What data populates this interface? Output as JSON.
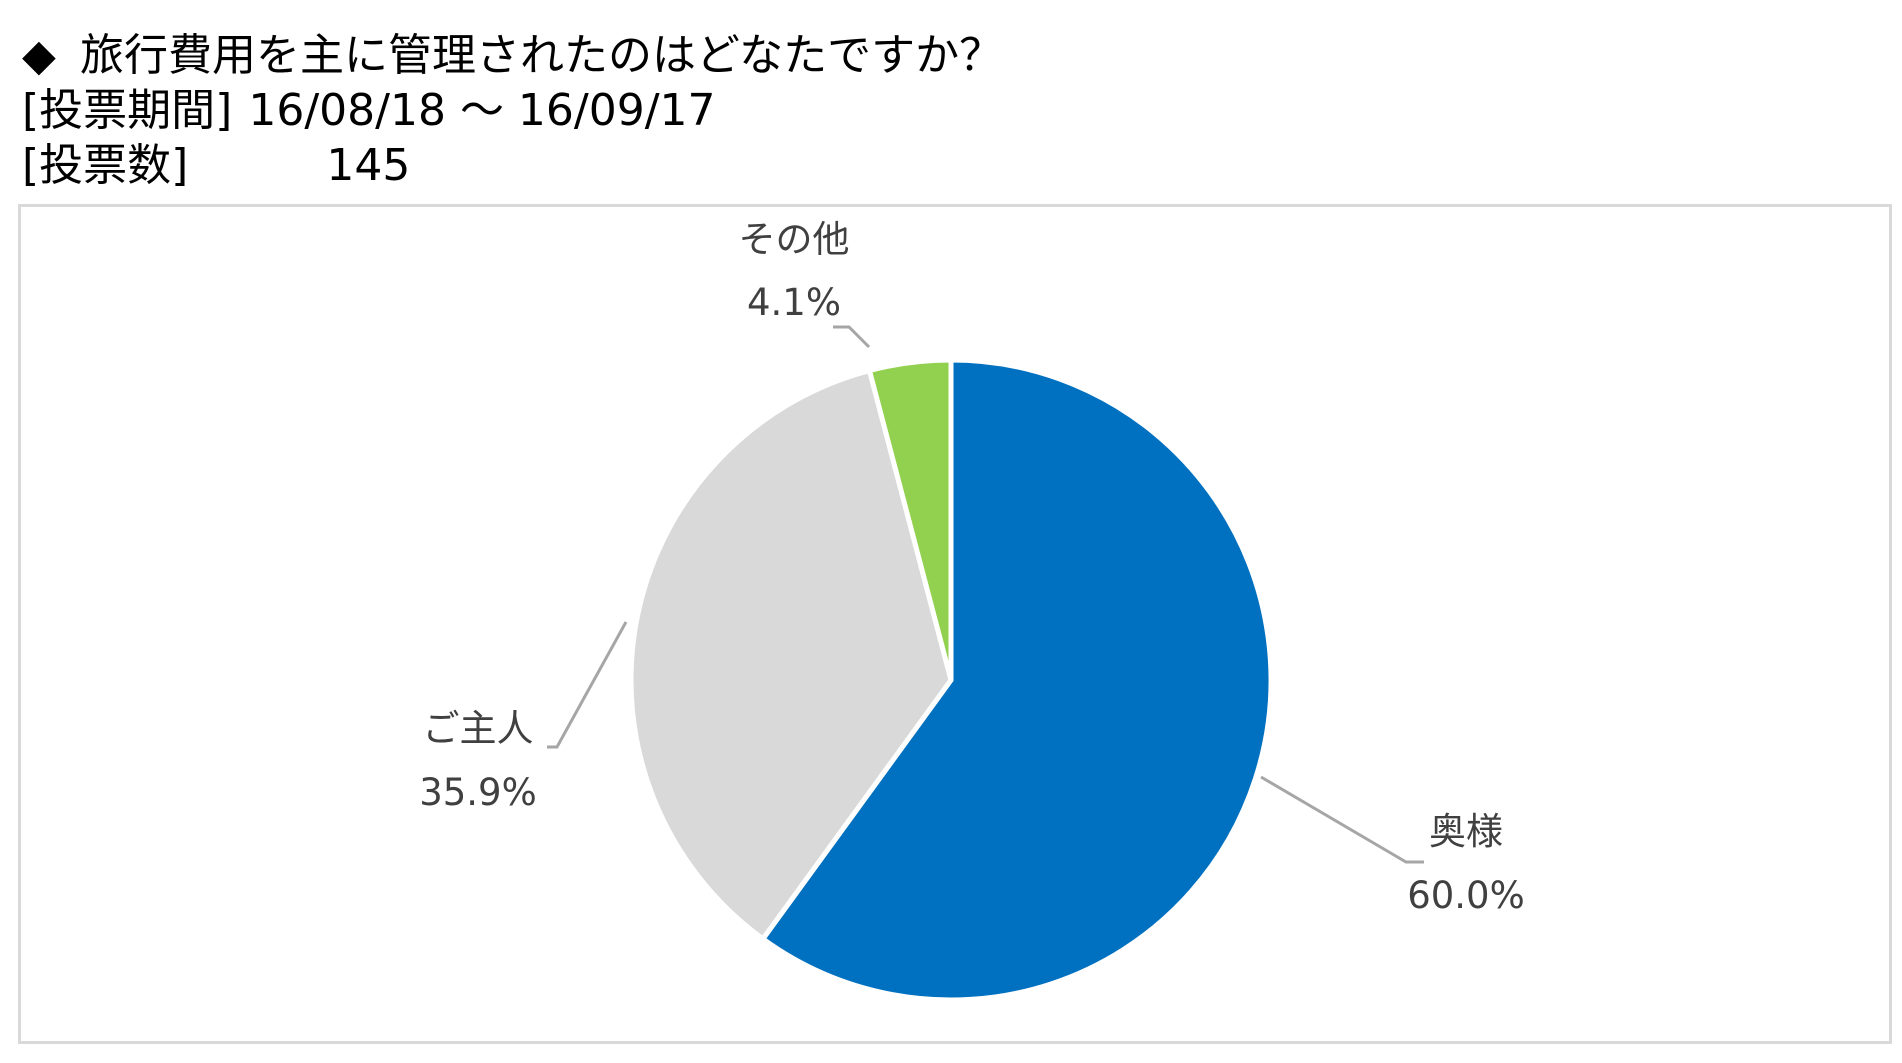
{
  "header": {
    "marker": "◆",
    "question": "旅行費用を主に管理されたのはどなたですか？",
    "period_label": "[投票期間]",
    "period_value": "16/08/18 ～ 16/09/17",
    "count_label": "[投票数]",
    "count_value": "145"
  },
  "chart_data": {
    "type": "pie",
    "start_angle_deg": 0,
    "direction": "clockwise",
    "slices": [
      {
        "label": "奥様",
        "value": 60.0,
        "display": "60.0%",
        "color": "#0070c0"
      },
      {
        "label": "ご主人",
        "value": 35.9,
        "display": "35.9%",
        "color": "#d9d9d9"
      },
      {
        "label": "その他",
        "value": 4.1,
        "display": "4.1%",
        "color": "#92d050"
      }
    ],
    "leader_line_color": "#a6a6a6",
    "slice_separator_color": "#ffffff"
  }
}
